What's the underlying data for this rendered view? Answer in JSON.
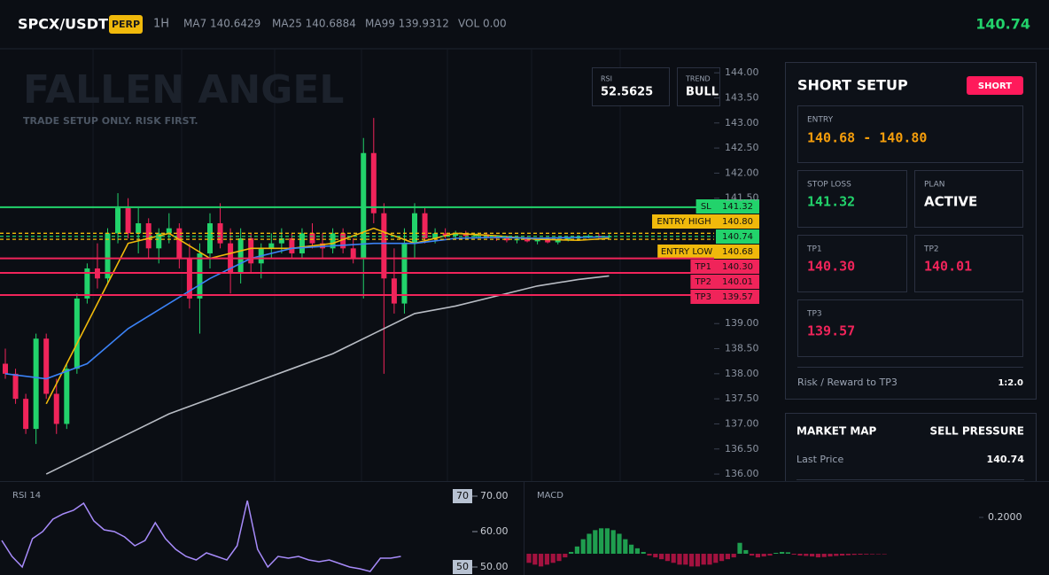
{
  "header": {
    "symbol": "SPCX/USDT",
    "badge": "PERP",
    "interval": "1H",
    "ma7": "MA7 140.6429",
    "ma25": "MA25 140.6884",
    "ma99": "MA99 139.9312",
    "volume": "VOL 0.00",
    "last_price": "140.74"
  },
  "overlay": {
    "watermark": "FALLEN ANGEL",
    "tagline": "TRADE SETUP ONLY. RISK FIRST.",
    "rsi_label": "RSI",
    "rsi_value": "52.5625",
    "trend_label": "TREND",
    "trend_value": "BULL"
  },
  "price_chart": {
    "type": "candlestick",
    "ylim": [
      135.86,
      144.48
    ],
    "yticks": [
      {
        "value": 136,
        "label": "136.00"
      },
      {
        "value": 136.5,
        "label": "136.50"
      },
      {
        "value": 137,
        "label": "137.00"
      },
      {
        "value": 137.5,
        "label": "137.50"
      },
      {
        "value": 138,
        "label": "138.00"
      },
      {
        "value": 138.5,
        "label": "138.50"
      },
      {
        "value": 139,
        "label": "139.00"
      },
      {
        "value": 141.5,
        "label": "141.50"
      },
      {
        "value": 142,
        "label": "142.00"
      },
      {
        "value": 142.5,
        "label": "142.50"
      },
      {
        "value": 143,
        "label": "143.00"
      },
      {
        "value": 143.5,
        "label": "143.50"
      },
      {
        "value": 144,
        "label": "144.00"
      }
    ],
    "up_color": "#22d36b",
    "down_color": "#f0245a",
    "candles": [
      [
        138.2,
        138.5,
        137.9,
        138.0
      ],
      [
        138.0,
        138.1,
        137.4,
        137.5
      ],
      [
        137.5,
        137.6,
        136.8,
        136.9
      ],
      [
        136.9,
        138.8,
        136.6,
        138.7
      ],
      [
        138.7,
        138.8,
        137.5,
        137.6
      ],
      [
        137.6,
        137.9,
        136.8,
        137.0
      ],
      [
        137.0,
        138.2,
        136.9,
        138.1
      ],
      [
        138.1,
        139.6,
        138.0,
        139.5
      ],
      [
        139.5,
        140.2,
        139.4,
        140.1
      ],
      [
        140.1,
        140.6,
        139.7,
        139.9
      ],
      [
        139.9,
        140.9,
        139.8,
        140.8
      ],
      [
        140.8,
        141.6,
        140.6,
        141.3
      ],
      [
        141.3,
        141.5,
        140.7,
        140.8
      ],
      [
        140.8,
        141.3,
        140.4,
        141.0
      ],
      [
        141.0,
        141.1,
        140.3,
        140.5
      ],
      [
        140.5,
        140.9,
        140.2,
        140.8
      ],
      [
        140.8,
        141.2,
        140.6,
        140.9
      ],
      [
        140.9,
        141.0,
        140.1,
        140.3
      ],
      [
        140.3,
        140.6,
        139.3,
        139.5
      ],
      [
        139.5,
        140.6,
        138.8,
        140.4
      ],
      [
        140.4,
        141.2,
        140.1,
        141.0
      ],
      [
        141.0,
        141.4,
        140.5,
        140.6
      ],
      [
        140.6,
        140.9,
        139.6,
        140.0
      ],
      [
        140.0,
        140.9,
        139.8,
        140.7
      ],
      [
        140.7,
        140.8,
        140.0,
        140.2
      ],
      [
        140.2,
        140.6,
        139.9,
        140.5
      ],
      [
        140.5,
        140.8,
        140.3,
        140.6
      ],
      [
        140.6,
        140.9,
        140.4,
        140.7
      ],
      [
        140.7,
        140.8,
        140.3,
        140.4
      ],
      [
        140.4,
        140.9,
        140.3,
        140.8
      ],
      [
        140.8,
        141.0,
        140.5,
        140.6
      ],
      [
        140.6,
        140.8,
        140.3,
        140.5
      ],
      [
        140.5,
        140.9,
        140.4,
        140.8
      ],
      [
        140.8,
        140.9,
        140.4,
        140.5
      ],
      [
        140.5,
        140.7,
        140.2,
        140.3
      ],
      [
        140.3,
        142.7,
        139.5,
        142.4
      ],
      [
        142.4,
        143.1,
        141.0,
        141.2
      ],
      [
        141.2,
        141.4,
        138.0,
        139.9
      ],
      [
        139.9,
        140.5,
        139.2,
        139.4
      ],
      [
        139.4,
        140.9,
        139.2,
        140.6
      ],
      [
        140.6,
        141.4,
        140.3,
        141.2
      ],
      [
        141.2,
        141.3,
        140.6,
        140.7
      ],
      [
        140.7,
        140.9,
        140.6,
        140.8
      ],
      [
        140.8,
        140.9,
        140.7,
        140.75
      ],
      [
        140.75,
        140.85,
        140.7,
        140.8
      ],
      [
        140.8,
        140.85,
        140.72,
        140.74
      ],
      [
        140.74,
        140.8,
        140.7,
        140.78
      ],
      [
        140.78,
        140.82,
        140.7,
        140.72
      ],
      [
        140.72,
        140.76,
        140.65,
        140.7
      ],
      [
        140.7,
        140.75,
        140.62,
        140.66
      ],
      [
        140.66,
        140.72,
        140.6,
        140.69
      ],
      [
        140.69,
        140.73,
        140.62,
        140.64
      ],
      [
        140.64,
        140.7,
        140.58,
        140.67
      ],
      [
        140.67,
        140.72,
        140.6,
        140.62
      ],
      [
        140.62,
        140.7,
        140.58,
        140.68
      ],
      [
        140.68,
        140.72,
        140.64,
        140.7
      ],
      [
        140.7,
        140.76,
        140.66,
        140.73
      ],
      [
        140.73,
        140.78,
        140.7,
        140.75
      ],
      [
        140.75,
        140.8,
        140.7,
        140.72
      ],
      [
        140.72,
        140.78,
        140.7,
        140.74
      ]
    ],
    "x": [
      0,
      4,
      8,
      12,
      16,
      20,
      24,
      28,
      32,
      36,
      40,
      44,
      48,
      52,
      56,
      59
    ],
    "series": [
      {
        "color": "#f0b90b",
        "values": [
          null,
          137.4,
          139.0,
          140.6,
          140.8,
          140.3,
          140.5,
          140.5,
          140.6,
          140.9,
          140.6,
          140.8,
          140.75,
          140.68,
          140.66,
          140.7
        ]
      },
      {
        "color": "#3b82f6",
        "values": [
          138.0,
          137.9,
          138.2,
          138.9,
          139.4,
          139.9,
          140.3,
          140.5,
          140.55,
          140.6,
          140.6,
          140.7,
          140.72,
          140.7,
          140.72,
          140.73
        ]
      },
      {
        "color": "#b8bcc4",
        "values": [
          null,
          136.0,
          136.4,
          136.8,
          137.2,
          137.5,
          137.8,
          138.1,
          138.4,
          138.8,
          139.2,
          139.35,
          139.55,
          139.75,
          139.88,
          139.95
        ]
      }
    ],
    "levels": [
      {
        "name": "SL",
        "price": 141.32,
        "color": "#22d36b",
        "dashed": false
      },
      {
        "name": "ENTRY HIGH",
        "price": {
          "value": 140.8,
          "label": "140.80"
        },
        "color": "#f0b90b",
        "dashed": true
      },
      {
        "price": 140.74,
        "color": "#22d36b",
        "dashed": true
      },
      {
        "name": "ENTRY LOW",
        "price": 140.68,
        "color": "#f0b90b",
        "dashed": true
      },
      {
        "name": "TP1",
        "price": {
          "value": 140.3,
          "label": "140.30"
        },
        "color": "#f0245a",
        "dashed": false
      },
      {
        "name": "TP2",
        "price": 140.01,
        "color": "#f0245a",
        "dashed": false
      },
      {
        "name": "TP3",
        "price": 139.57,
        "color": "#f0245a",
        "dashed": false
      }
    ]
  },
  "rsi_chart": {
    "type": "line",
    "title": "RSI 14",
    "color": "#a78bfa",
    "ylim": [
      47.75,
      74.25
    ],
    "yticks": [
      {
        "value": 70,
        "label": "70.00"
      },
      {
        "value": 60,
        "label": "60.00"
      },
      {
        "value": 50,
        "label": "50.00"
      }
    ],
    "band_markers": [
      70,
      50
    ],
    "values": [
      57.5,
      53,
      50,
      58,
      60,
      63.5,
      65,
      66,
      68,
      63,
      60.5,
      60,
      58.5,
      56,
      57.5,
      62.5,
      58,
      55,
      53,
      52,
      54,
      53,
      52,
      56,
      68.75,
      55,
      50,
      53,
      52.5,
      53,
      52,
      51.5,
      52,
      51,
      50,
      49.5,
      48.75,
      52.5,
      52.5,
      53
    ]
  },
  "macd_chart": {
    "type": "bar",
    "title": "MACD",
    "ylim": [
      -0.117,
      0.4
    ],
    "yticks": [
      {
        "value": 0.2,
        "label": "0.2000"
      }
    ],
    "up_color": "#1f9e4f",
    "down_color": "#a3123f",
    "values": [
      -0.05,
      -0.06,
      -0.07,
      -0.06,
      -0.05,
      -0.04,
      -0.02,
      0.01,
      0.04,
      0.08,
      0.11,
      0.13,
      0.14,
      0.14,
      0.13,
      0.11,
      0.08,
      0.05,
      0.03,
      0.01,
      -0.01,
      -0.02,
      -0.03,
      -0.04,
      -0.05,
      -0.06,
      -0.06,
      -0.07,
      -0.07,
      -0.06,
      -0.06,
      -0.05,
      -0.04,
      -0.03,
      -0.02,
      0.06,
      0.02,
      -0.01,
      -0.02,
      -0.015,
      -0.01,
      0.005,
      0.01,
      0.008,
      -0.005,
      -0.01,
      -0.012,
      -0.015,
      -0.02,
      -0.018,
      -0.015,
      -0.012,
      -0.01,
      -0.008,
      -0.006,
      -0.005,
      -0.004,
      -0.003,
      -0.002,
      -0.002
    ]
  },
  "setup_panel": {
    "title": "SHORT SETUP",
    "badge": "SHORT",
    "entry_label": "ENTRY",
    "entry": "140.68 - 140.80",
    "stop_loss_label": "STOP LOSS",
    "stop_loss": "141.32",
    "plan_label": "PLAN",
    "plan": "ACTIVE",
    "tp1_label": "TP1",
    "tp1": "140.30",
    "tp2_label": "TP2",
    "tp2": "140.01",
    "tp3_label": "TP3",
    "tp3": "139.57",
    "rr_label": "Risk / Reward to TP3",
    "rr": "1:2.0"
  },
  "market_map": {
    "title": "MARKET MAP",
    "status": "SELL PRESSURE",
    "last_price_label": "Last Price",
    "last_price": "140.74"
  }
}
